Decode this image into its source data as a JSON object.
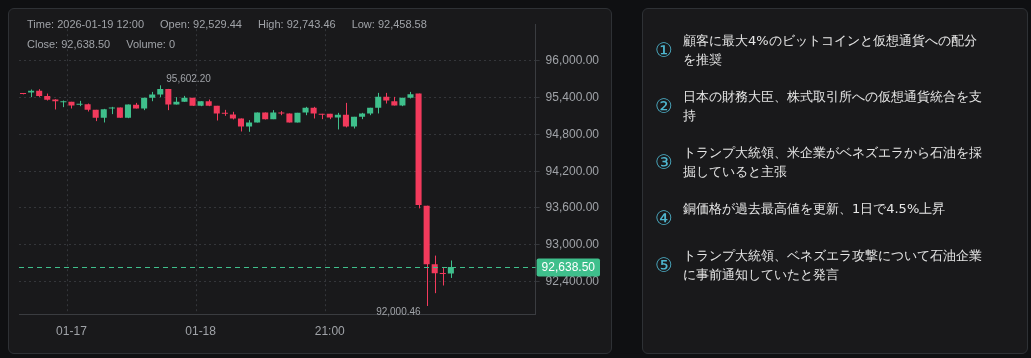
{
  "chart_data": [
    {
      "type": "candlestick",
      "categories": [
        null,
        null,
        null,
        null,
        null,
        null,
        "01-17",
        null,
        null,
        null,
        null,
        null,
        null,
        null,
        null,
        null,
        null,
        null,
        null,
        null,
        null,
        null,
        "01-18",
        null,
        null,
        null,
        null,
        null,
        null,
        null,
        null,
        null,
        null,
        null,
        null,
        null,
        null,
        null,
        "21:00",
        null,
        null,
        null,
        null,
        null,
        null,
        null,
        null,
        null,
        null,
        null,
        null,
        null,
        null,
        null,
        null,
        null,
        null,
        null,
        null,
        null,
        null,
        null,
        null,
        null
      ],
      "ohlc": [
        [
          95470,
          95470,
          95455,
          95460
        ],
        [
          95485,
          95534,
          95409,
          95512
        ],
        [
          95512,
          95539,
          95414,
          95430
        ],
        [
          95430,
          95468,
          95354,
          95365
        ],
        [
          95371,
          95376,
          95208,
          95343
        ],
        [
          95327,
          95354,
          95246,
          95343
        ],
        [
          95333,
          95333,
          95224,
          95273
        ],
        [
          95284,
          95349,
          95262,
          95300
        ],
        [
          95295,
          95305,
          95175,
          95202
        ],
        [
          95202,
          95202,
          95018,
          95072
        ],
        [
          95072,
          95218,
          94996,
          95213
        ],
        [
          95224,
          95251,
          95132,
          95235
        ],
        [
          95240,
          95240,
          95072,
          95072
        ],
        [
          95072,
          95289,
          95066,
          95289
        ],
        [
          95284,
          95316,
          95224,
          95224
        ],
        [
          95224,
          95398,
          95197,
          95398
        ],
        [
          95398,
          95495,
          95343,
          95452
        ],
        [
          95452,
          95602.2,
          95409,
          95544
        ],
        [
          95544,
          95544,
          95197,
          95289
        ],
        [
          95289,
          95409,
          95289,
          95333
        ],
        [
          95333,
          95430,
          95333,
          95398
        ],
        [
          95398,
          95398,
          95267,
          95267
        ],
        [
          95267,
          95343,
          95262,
          95343
        ],
        [
          95343,
          95371,
          95262,
          95267
        ],
        [
          95267,
          95267,
          95028,
          95143
        ],
        [
          95148,
          95202,
          95104,
          95137
        ],
        [
          95126,
          95170,
          95045,
          95061
        ],
        [
          95061,
          95061,
          94849,
          94931
        ],
        [
          94931,
          95034,
          94844,
          94996
        ],
        [
          94996,
          95159,
          94996,
          95159
        ],
        [
          95159,
          95159,
          95045,
          95050
        ],
        [
          95050,
          95197,
          95050,
          95159
        ],
        [
          95159,
          95181,
          95115,
          95143
        ],
        [
          95143,
          95143,
          94996,
          94996
        ],
        [
          94996,
          95153,
          94996,
          95153
        ],
        [
          95159,
          95251,
          95115,
          95235
        ],
        [
          95235,
          95251,
          95061,
          95143
        ],
        [
          95137,
          95137,
          95050,
          95121
        ],
        [
          95137,
          95137,
          95050,
          95077
        ],
        [
          95077,
          95153,
          94882,
          95121
        ],
        [
          95121,
          95316,
          94915,
          94931
        ],
        [
          94931,
          95088,
          94898,
          95088
        ],
        [
          95088,
          95153,
          95050,
          95143
        ],
        [
          95143,
          95235,
          95115,
          95235
        ],
        [
          95235,
          95479,
          95143,
          95414
        ],
        [
          95414,
          95479,
          95305,
          95354
        ],
        [
          95343,
          95414,
          95273,
          95273
        ],
        [
          95273,
          95398,
          95262,
          95398
        ],
        [
          95398,
          95495,
          95387,
          95457
        ],
        [
          95467,
          95467,
          93594,
          93648
        ],
        [
          93637,
          93637,
          92000.46,
          92682
        ],
        [
          92682,
          92823,
          92210,
          92535
        ],
        [
          92530,
          92628,
          92335,
          92524
        ],
        [
          92529.44,
          92743.46,
          92458.58,
          92638.5
        ],
        null,
        null,
        null,
        null,
        null,
        null,
        null,
        null,
        null,
        null
      ],
      "colors": [
        "#f23a5c",
        "#3fbf8c",
        "#f23a5c",
        "#f23a5c",
        "#f23a5c",
        "#3fbf8c",
        "#f23a5c",
        "#3fbf8c",
        "#f23a5c",
        "#f23a5c",
        "#3fbf8c",
        "#3fbf8c",
        "#f23a5c",
        "#3fbf8c",
        "#f23a5c",
        "#3fbf8c",
        "#3fbf8c",
        "#3fbf8c",
        "#f23a5c",
        "#3fbf8c",
        "#3fbf8c",
        "#f23a5c",
        "#3fbf8c",
        "#f23a5c",
        "#f23a5c",
        "#f23a5c",
        "#f23a5c",
        "#f23a5c",
        "#3fbf8c",
        "#3fbf8c",
        "#f23a5c",
        "#3fbf8c",
        "#f23a5c",
        "#f23a5c",
        "#3fbf8c",
        "#3fbf8c",
        "#f23a5c",
        "#f23a5c",
        "#f23a5c",
        "#3fbf8c",
        "#f23a5c",
        "#3fbf8c",
        "#3fbf8c",
        "#3fbf8c",
        "#3fbf8c",
        "#f23a5c",
        "#f23a5c",
        "#3fbf8c",
        "#3fbf8c",
        "#f23a5c",
        "#f23a5c",
        "#f23a5c",
        "#f23a5c",
        "#3fbf8c",
        null,
        null,
        null,
        null,
        null,
        null,
        null,
        null,
        null,
        null
      ],
      "ylim": [
        91860,
        96600
      ],
      "yticks": [
        {
          "value": 92400,
          "label": "92,400.00"
        },
        {
          "value": 93000,
          "label": "93,000.00"
        },
        {
          "value": 93600,
          "label": "93,600.00"
        },
        {
          "value": 94200,
          "label": "94,200.00"
        },
        {
          "value": 94800,
          "label": "94,800.00"
        },
        {
          "value": 95400,
          "label": "95,400.00"
        },
        {
          "value": 96000,
          "label": "96,000.00"
        }
      ],
      "grid": true,
      "ref_lines": [
        {
          "axis": "y",
          "value": 92638.5,
          "label": "92,638.50",
          "color": "#3fbf8c",
          "line_style": "dashed"
        }
      ],
      "annotations": [
        "Time: 2026-01-19 12:00",
        "Open: 92,529.44",
        "High: 92,743.46",
        "Low: 92,458.58",
        "Close: 92,638.50",
        "Volume: 0",
        "95,602.20",
        "92,000.46"
      ]
    },
    {
      "type": "other",
      "annotations": [
        "① 顧客に最大4%のビットコインと仮想通貨への配分を推奨",
        "② 日本の財務大臣、株式取引所への仮想通貨統合を支持",
        "③ トランプ大統領、米企業がベネズエラから石油を採掘していると主張",
        "④ 銅価格が過去最高値を更新、1日で4.5%上昇",
        "⑤ トランプ大統領、ベネズエラ攻撃について石油企業に事前通知していたと発言"
      ]
    }
  ]
}
